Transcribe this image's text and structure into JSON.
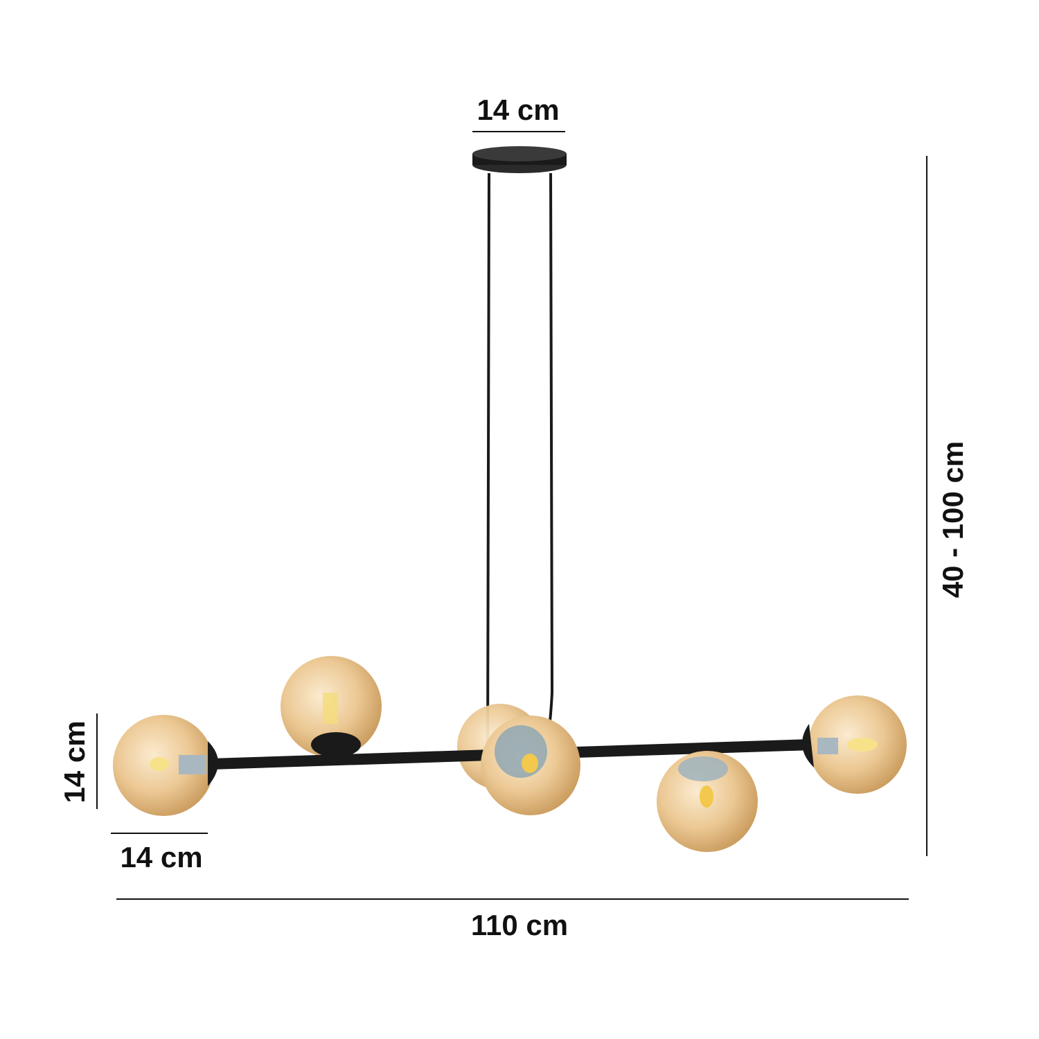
{
  "dimensions": {
    "canopy_width": "14 cm",
    "height_range": "40 - 100 cm",
    "globe_height": "14 cm",
    "globe_width": "14 cm",
    "total_width": "110 cm"
  },
  "colors": {
    "frame": "#1a1a1a",
    "globe_amber": "#e9c48e",
    "dimension_line": "#111111"
  }
}
